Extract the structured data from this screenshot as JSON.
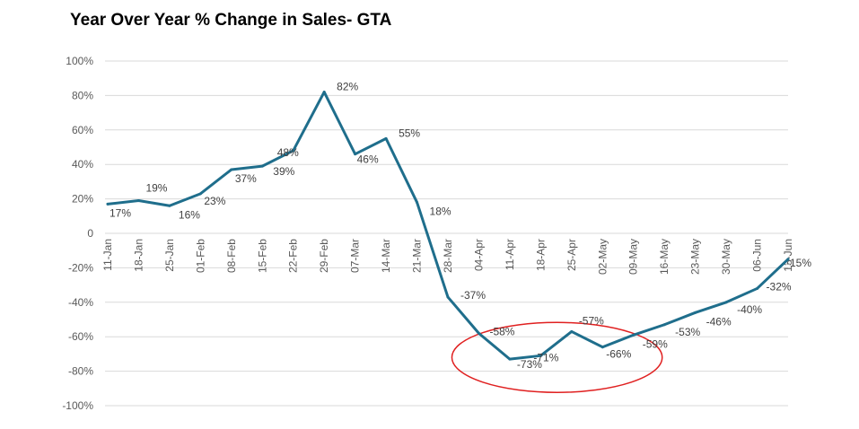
{
  "chart_data": {
    "type": "line",
    "title": "Year Over Year % Change in Sales- GTA",
    "xlabel": "",
    "ylabel": "",
    "ylim": [
      -100,
      100
    ],
    "y_ticks": [
      "100%",
      "80%",
      "60%",
      "40%",
      "20%",
      "0",
      "-20%",
      "-40%",
      "-60%",
      "-80%",
      "-100%"
    ],
    "grid": true,
    "legend": "none",
    "series_color": "#1f6e8c",
    "annotation": {
      "shape": "ellipse",
      "color": "#e02020",
      "spans": [
        "04-Apr",
        "09-May"
      ]
    },
    "categories": [
      "11-Jan",
      "18-Jan",
      "25-Jan",
      "01-Feb",
      "08-Feb",
      "15-Feb",
      "22-Feb",
      "29-Feb",
      "07-Mar",
      "14-Mar",
      "21-Mar",
      "28-Mar",
      "04-Apr",
      "11-Apr",
      "18-Apr",
      "25-Apr",
      "02-May",
      "09-May",
      "16-May",
      "23-May",
      "30-May",
      "06-Jun",
      "13-Jun"
    ],
    "values": [
      17,
      19,
      16,
      23,
      37,
      39,
      48,
      82,
      46,
      55,
      18,
      -37,
      -58,
      -73,
      -71,
      -57,
      -66,
      -59,
      -53,
      -46,
      -40,
      -32,
      -15
    ],
    "data_labels": [
      "17%",
      "19%",
      "16%",
      "23%",
      "37%",
      "39%",
      "48%",
      "82%",
      "46%",
      "55%",
      "18%",
      "-37%",
      "-58%",
      "-73%",
      "-71%",
      "-57%",
      "-66%",
      "-59%",
      "-53%",
      "-46%",
      "-40%",
      "-32%",
      "-15%"
    ]
  }
}
